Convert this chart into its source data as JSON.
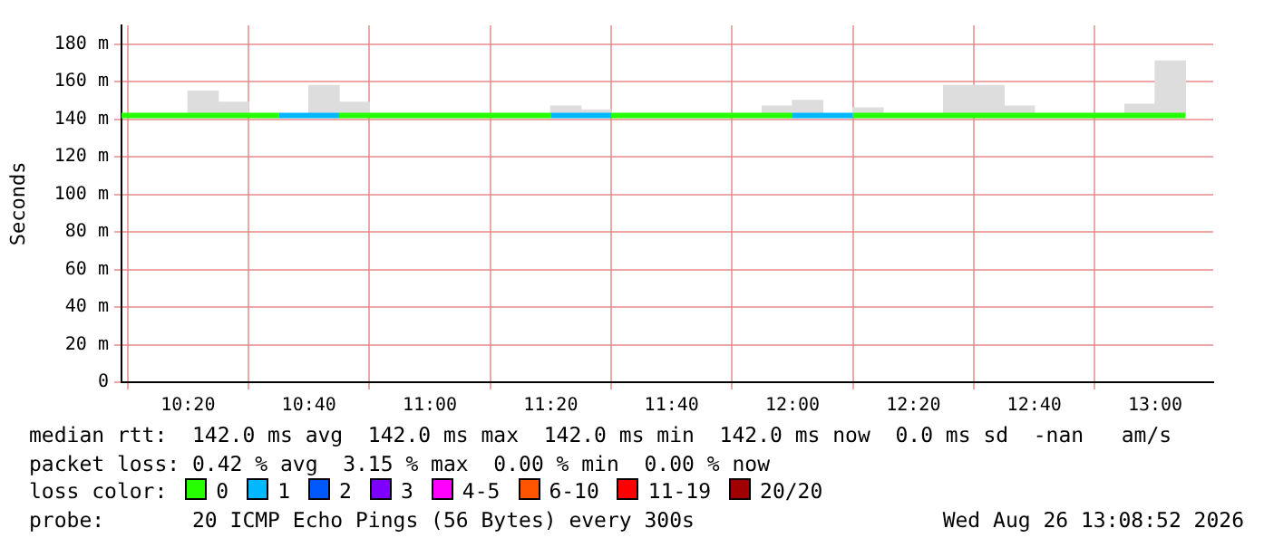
{
  "chart_data": {
    "type": "step",
    "ylabel": "Seconds",
    "legend_title": "loss color:",
    "legend": "bottom left",
    "grid": true,
    "x": [
      10.15,
      10.1667,
      10.25,
      10.3333,
      10.4167,
      10.5,
      10.5833,
      10.6667,
      10.75,
      10.8333,
      10.9167,
      11,
      11.0833,
      11.1667,
      11.25,
      11.3333,
      11.4167,
      11.5,
      11.5833,
      11.6667,
      11.75,
      11.8333,
      11.9167,
      12,
      12.0833,
      12.1667,
      12.25,
      12.3333,
      12.4167,
      12.5,
      12.5833,
      12.6667,
      12.75,
      12.8333,
      12.9167,
      13,
      13.0833
    ],
    "xlim": [
      10.15,
      13.16
    ],
    "xticks": [
      {
        "value": 10.3333,
        "label": "10:20"
      },
      {
        "value": 10.6667,
        "label": "10:40"
      },
      {
        "value": 11,
        "label": "11:00"
      },
      {
        "value": 11.3333,
        "label": "11:20"
      },
      {
        "value": 11.6667,
        "label": "11:40"
      },
      {
        "value": 12,
        "label": "12:00"
      },
      {
        "value": 12.3333,
        "label": "12:20"
      },
      {
        "value": 12.6667,
        "label": "12:40"
      },
      {
        "value": 13,
        "label": "13:00"
      }
    ],
    "ylim": [
      0,
      190
    ],
    "yticks": [
      {
        "value": 0,
        "label": "0"
      },
      {
        "value": 20,
        "label": "20 m"
      },
      {
        "value": 40,
        "label": "40 m"
      },
      {
        "value": 60,
        "label": "60 m"
      },
      {
        "value": 80,
        "label": "80 m"
      },
      {
        "value": 100,
        "label": "100 m"
      },
      {
        "value": 120,
        "label": "120 m"
      },
      {
        "value": 140,
        "label": "140 m"
      },
      {
        "value": 160,
        "label": "160 m"
      },
      {
        "value": 180,
        "label": "180 m"
      }
    ],
    "series": [
      {
        "type": "bar",
        "color": "#dddddd",
        "x": [
          10.375,
          10.4583,
          10.5417,
          10.625,
          10.7083,
          10.7917,
          10.875,
          10.9583,
          11.0417,
          11.125,
          11.2083,
          11.2917,
          11.375,
          11.4583,
          11.5417,
          11.625,
          11.7083,
          11.7917,
          11.875,
          11.9583,
          12.0417,
          12.125,
          12.2083,
          12.2917,
          12.375,
          12.4583,
          12.5417,
          12.625,
          12.7083,
          12.7917,
          12.875,
          12.9583,
          13.0417
        ],
        "values": [
          13,
          7,
          null,
          null,
          16,
          7,
          null,
          null,
          null,
          null,
          null,
          null,
          5,
          3,
          null,
          null,
          null,
          null,
          null,
          5,
          8,
          null,
          4,
          null,
          null,
          16,
          16,
          5,
          null,
          null,
          null,
          6,
          29
        ],
        "base": [
          142,
          142,
          null,
          null,
          142,
          142,
          null,
          null,
          null,
          null,
          null,
          null,
          142,
          142,
          null,
          null,
          null,
          null,
          null,
          142,
          142,
          null,
          142,
          null,
          null,
          142,
          142,
          142,
          null,
          null,
          null,
          142,
          142
        ]
      },
      {
        "name": "0",
        "color": "#26ff00",
        "values": [
          142,
          142,
          142,
          142,
          142,
          142,
          142,
          null,
          142,
          142,
          142,
          142,
          142,
          142,
          142,
          142,
          null,
          142,
          142,
          142,
          142,
          142,
          142,
          142,
          null,
          142,
          142,
          142,
          142,
          142,
          142,
          142,
          142,
          142,
          142,
          142,
          142
        ]
      },
      {
        "name": "1",
        "color": "#00b8ff",
        "values": [
          null,
          null,
          null,
          null,
          null,
          null,
          142,
          142,
          142,
          null,
          null,
          null,
          null,
          null,
          null,
          142,
          142,
          142,
          null,
          null,
          null,
          null,
          null,
          142,
          142,
          142,
          null,
          null,
          null,
          null,
          null,
          null,
          null,
          null,
          null,
          null,
          null
        ]
      },
      {
        "name": "2",
        "color": "#0059ff",
        "values": [
          null,
          null,
          null,
          null,
          null,
          null,
          null,
          null,
          null,
          null,
          null,
          null,
          null,
          null,
          null,
          null,
          null,
          null,
          null,
          null,
          null,
          null,
          null,
          null,
          null,
          null,
          null,
          null,
          null,
          null,
          null,
          null,
          null,
          null,
          null,
          null,
          null
        ]
      },
      {
        "name": "3",
        "color": "#7e00ff",
        "values": [
          null,
          null,
          null,
          null,
          null,
          null,
          null,
          null,
          null,
          null,
          null,
          null,
          null,
          null,
          null,
          null,
          null,
          null,
          null,
          null,
          null,
          null,
          null,
          null,
          null,
          null,
          null,
          null,
          null,
          null,
          null,
          null,
          null,
          null,
          null,
          null,
          null
        ]
      },
      {
        "name": "4-5",
        "color": "#ff00ff",
        "values": [
          null,
          null,
          null,
          null,
          null,
          null,
          null,
          null,
          null,
          null,
          null,
          null,
          null,
          null,
          null,
          null,
          null,
          null,
          null,
          null,
          null,
          null,
          null,
          null,
          null,
          null,
          null,
          null,
          null,
          null,
          null,
          null,
          null,
          null,
          null,
          null,
          null
        ]
      },
      {
        "name": "6-10",
        "color": "#ff5500",
        "values": [
          null,
          null,
          null,
          null,
          null,
          null,
          null,
          null,
          null,
          null,
          null,
          null,
          null,
          null,
          null,
          null,
          null,
          null,
          null,
          null,
          null,
          null,
          null,
          null,
          null,
          null,
          null,
          null,
          null,
          null,
          null,
          null,
          null,
          null,
          null,
          null,
          null
        ]
      },
      {
        "name": "11-19",
        "color": "#ff0000",
        "values": [
          null,
          null,
          null,
          null,
          null,
          null,
          null,
          null,
          null,
          null,
          null,
          null,
          null,
          null,
          null,
          null,
          null,
          null,
          null,
          null,
          null,
          null,
          null,
          null,
          null,
          null,
          null,
          null,
          null,
          null,
          null,
          null,
          null,
          null,
          null,
          null,
          null
        ]
      },
      {
        "name": "20/20",
        "color": "#a10000",
        "values": [
          null,
          null,
          null,
          null,
          null,
          null,
          null,
          null,
          null,
          null,
          null,
          null,
          null,
          null,
          null,
          null,
          null,
          null,
          null,
          null,
          null,
          null,
          null,
          null,
          null,
          null,
          null,
          null,
          null,
          null,
          null,
          null,
          null,
          null,
          null,
          null,
          null
        ]
      }
    ],
    "annotations": [
      "median rtt:  142.0 ms avg  142.0 ms max  142.0 ms min  142.0 ms now  0.0 ms sd  -nan   am/s",
      "packet loss: 0.42 % avg  3.15 % max  0.00 % min  0.00 % now",
      "probe:       20 ICMP Echo Pings (56 Bytes) every 300s",
      "Wed Aug 26 13:08:52 2026"
    ]
  }
}
